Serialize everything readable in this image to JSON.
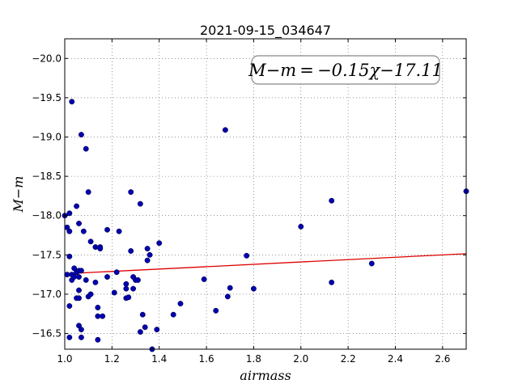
{
  "chart_data": {
    "type": "scatter",
    "title": "2021-09-15_034647",
    "xlabel": "airmass",
    "ylabel": "M−m",
    "xlim": [
      1.0,
      2.7
    ],
    "ylim": [
      -20.25,
      -16.3
    ],
    "y_inverted": true,
    "grid": true,
    "xticks": [
      "1.0",
      "1.2",
      "1.4",
      "1.6",
      "1.8",
      "2.0",
      "2.2",
      "2.4",
      "2.6"
    ],
    "yticks": [
      "−16.5",
      "−17.0",
      "−17.5",
      "−18.0",
      "−18.5",
      "−19.0",
      "−19.5",
      "−20.0"
    ],
    "annotation": "M−m = −0.15χ−17.11",
    "colors": {
      "points": "#0000b0",
      "fit": "#dd0000",
      "grid": "#555555"
    },
    "fit": {
      "slope": -0.15,
      "intercept": -17.11
    },
    "points": [
      [
        1.0,
        -18.0
      ],
      [
        1.01,
        -17.25
      ],
      [
        1.01,
        -17.85
      ],
      [
        1.02,
        -16.45
      ],
      [
        1.02,
        -16.85
      ],
      [
        1.02,
        -17.48
      ],
      [
        1.02,
        -17.8
      ],
      [
        1.02,
        -18.03
      ],
      [
        1.03,
        -17.18
      ],
      [
        1.03,
        -17.25
      ],
      [
        1.03,
        -19.45
      ],
      [
        1.04,
        -17.22
      ],
      [
        1.04,
        -17.33
      ],
      [
        1.05,
        -17.28
      ],
      [
        1.05,
        -18.12
      ],
      [
        1.05,
        -16.95
      ],
      [
        1.06,
        -16.6
      ],
      [
        1.06,
        -16.95
      ],
      [
        1.06,
        -17.05
      ],
      [
        1.06,
        -17.22
      ],
      [
        1.06,
        -17.3
      ],
      [
        1.06,
        -17.9
      ],
      [
        1.07,
        -16.45
      ],
      [
        1.07,
        -16.55
      ],
      [
        1.07,
        -17.3
      ],
      [
        1.07,
        -19.03
      ],
      [
        1.08,
        -17.8
      ],
      [
        1.09,
        -17.18
      ],
      [
        1.09,
        -18.85
      ],
      [
        1.1,
        -16.97
      ],
      [
        1.1,
        -18.3
      ],
      [
        1.11,
        -17.67
      ],
      [
        1.11,
        -17.0
      ],
      [
        1.13,
        -17.15
      ],
      [
        1.13,
        -17.6
      ],
      [
        1.14,
        -16.42
      ],
      [
        1.14,
        -16.72
      ],
      [
        1.14,
        -16.83
      ],
      [
        1.15,
        -17.6
      ],
      [
        1.15,
        -17.58
      ],
      [
        1.16,
        -16.72
      ],
      [
        1.18,
        -17.82
      ],
      [
        1.18,
        -17.22
      ],
      [
        1.21,
        -17.02
      ],
      [
        1.22,
        -17.28
      ],
      [
        1.23,
        -17.8
      ],
      [
        1.26,
        -16.95
      ],
      [
        1.26,
        -17.07
      ],
      [
        1.26,
        -17.13
      ],
      [
        1.27,
        -16.96
      ],
      [
        1.28,
        -17.55
      ],
      [
        1.28,
        -18.3
      ],
      [
        1.29,
        -17.07
      ],
      [
        1.29,
        -17.22
      ],
      [
        1.3,
        -17.18
      ],
      [
        1.31,
        -17.18
      ],
      [
        1.32,
        -18.15
      ],
      [
        1.32,
        -16.52
      ],
      [
        1.33,
        -16.74
      ],
      [
        1.34,
        -16.58
      ],
      [
        1.35,
        -17.58
      ],
      [
        1.35,
        -17.43
      ],
      [
        1.36,
        -17.5
      ],
      [
        1.37,
        -16.3
      ],
      [
        1.39,
        -16.55
      ],
      [
        1.4,
        -17.65
      ],
      [
        1.46,
        -16.74
      ],
      [
        1.49,
        -16.88
      ],
      [
        1.59,
        -17.19
      ],
      [
        1.64,
        -16.79
      ],
      [
        1.68,
        -19.09
      ],
      [
        1.69,
        -16.97
      ],
      [
        1.7,
        -17.08
      ],
      [
        1.77,
        -17.49
      ],
      [
        1.8,
        -17.07
      ],
      [
        2.0,
        -17.86
      ],
      [
        2.13,
        -17.15
      ],
      [
        2.13,
        -18.19
      ],
      [
        2.3,
        -17.39
      ],
      [
        2.7,
        -18.31
      ]
    ]
  }
}
